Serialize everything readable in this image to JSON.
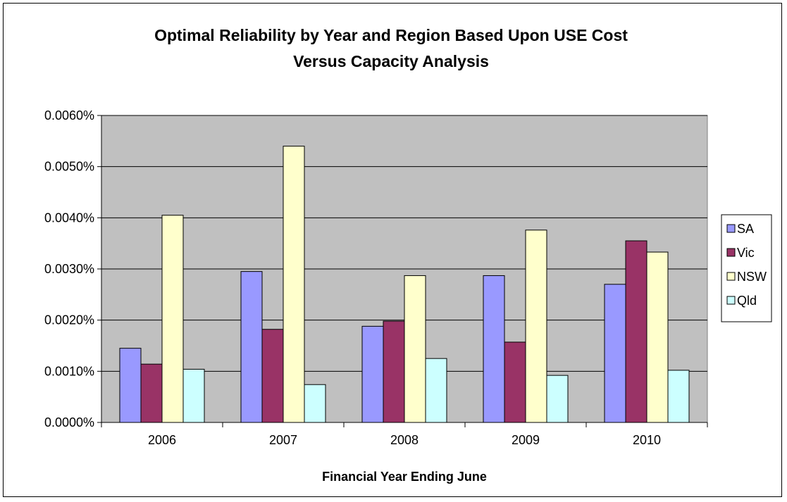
{
  "chart_data": {
    "type": "bar",
    "title_lines": [
      "Optimal Reliability by Year and Region Based Upon USE Cost",
      "Versus Capacity Analysis"
    ],
    "xlabel": "Financial Year Ending June",
    "ylabel": "",
    "categories": [
      "2006",
      "2007",
      "2008",
      "2009",
      "2010"
    ],
    "y_ticks": [
      "0.0000%",
      "0.0010%",
      "0.0020%",
      "0.0030%",
      "0.0040%",
      "0.0050%",
      "0.0060%"
    ],
    "ylim": [
      0,
      0.006
    ],
    "grid": true,
    "legend_position": "right",
    "plot_background": "#c0c0c0",
    "series": [
      {
        "name": "SA",
        "color": "#9999ff",
        "values": [
          0.00145,
          0.00295,
          0.00188,
          0.00287,
          0.0027
        ]
      },
      {
        "name": "Vic",
        "color": "#993366",
        "values": [
          0.00114,
          0.00182,
          0.00198,
          0.00157,
          0.00355
        ]
      },
      {
        "name": "NSW",
        "color": "#ffffcc",
        "values": [
          0.00405,
          0.0054,
          0.00287,
          0.00376,
          0.00333
        ]
      },
      {
        "name": "Qld",
        "color": "#ccffff",
        "values": [
          0.00104,
          0.00074,
          0.00125,
          0.00092,
          0.00102
        ]
      }
    ]
  }
}
